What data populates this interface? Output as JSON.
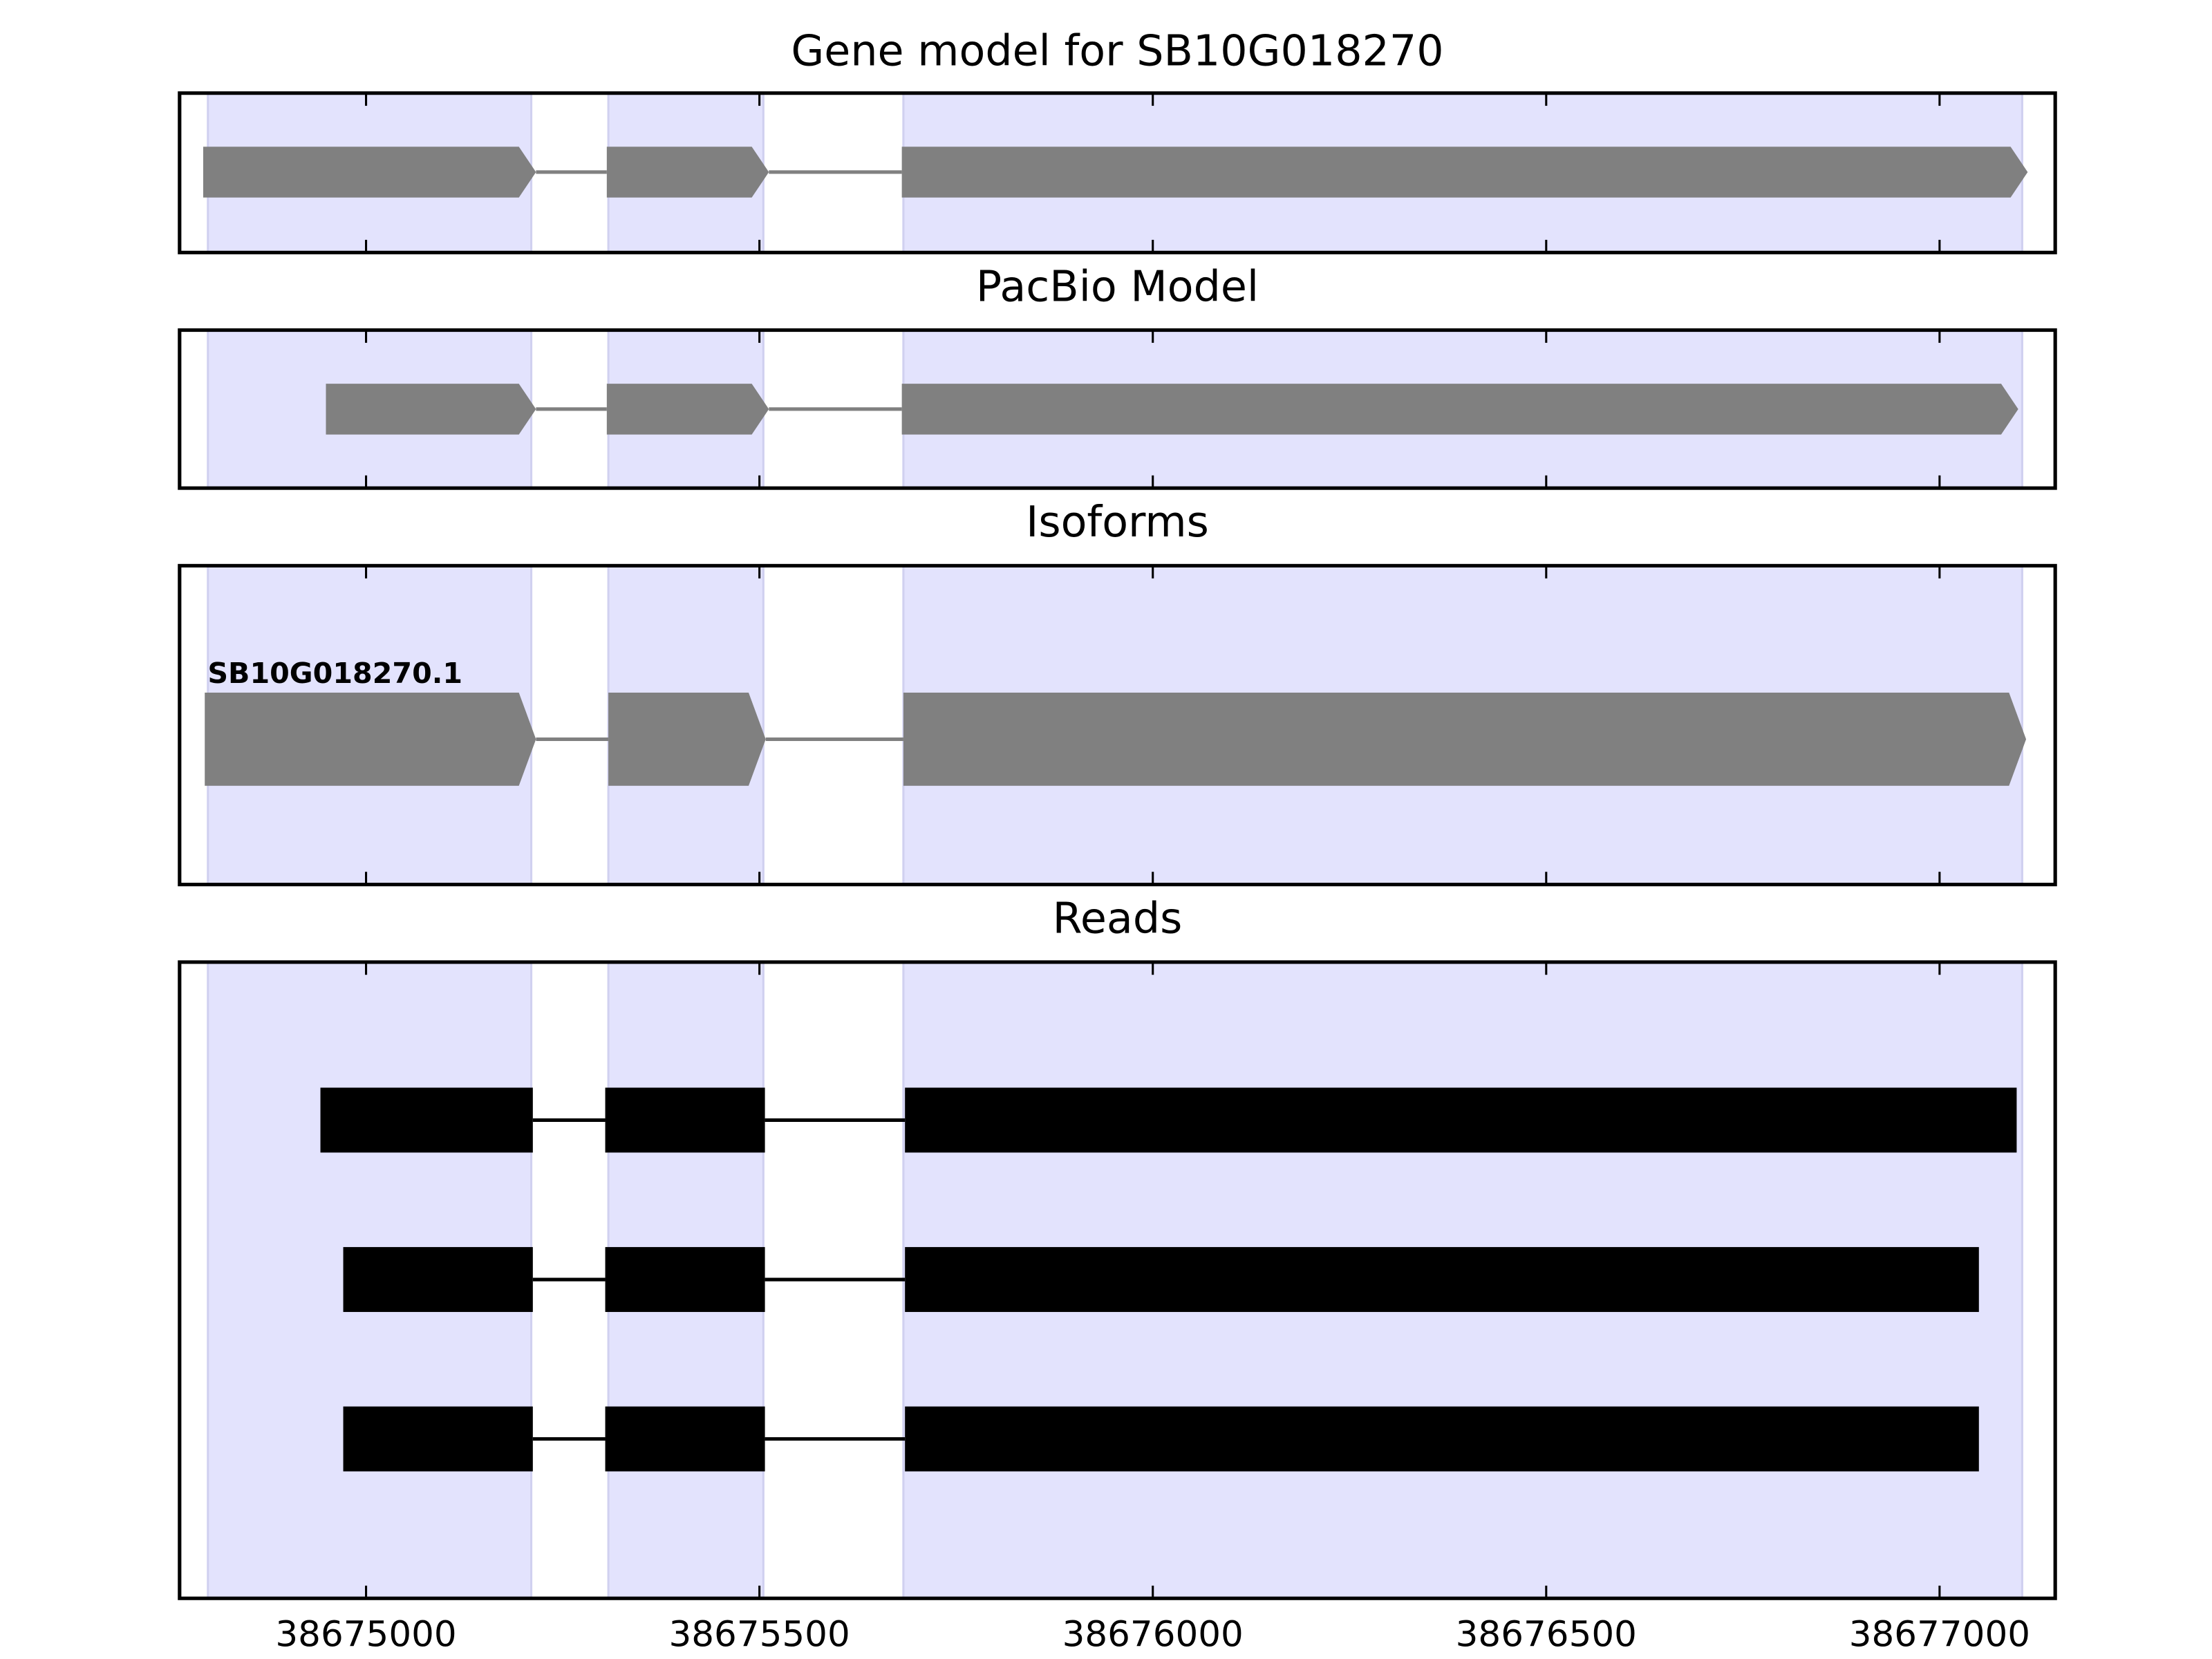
{
  "chart_data": [
    {
      "type": "gene_track",
      "title": "Gene model for SB10G018270",
      "xlim": [
        38674763,
        38677147
      ],
      "xticks": [
        38675000,
        38675500,
        38676000,
        38676500,
        38677000
      ],
      "show_tick_labels": false,
      "highlight": [
        [
          38674799,
          38675210
        ],
        [
          38675308,
          38675505
        ],
        [
          38675683,
          38677105
        ]
      ],
      "shape": "arrow",
      "color": "#808080",
      "features": [
        {
          "exons": [
            [
              38674793,
              38675216
            ],
            [
              38675306,
              38675512
            ],
            [
              38675681,
              38677112
            ]
          ]
        }
      ]
    },
    {
      "type": "gene_track",
      "title": "PacBio Model",
      "xlim": [
        38674763,
        38677147
      ],
      "xticks": [
        38675000,
        38675500,
        38676000,
        38676500,
        38677000
      ],
      "show_tick_labels": false,
      "highlight": [
        [
          38674799,
          38675210
        ],
        [
          38675308,
          38675505
        ],
        [
          38675683,
          38677105
        ]
      ],
      "shape": "arrow",
      "color": "#808080",
      "features": [
        {
          "exons": [
            [
              38674949,
              38675216
            ],
            [
              38675306,
              38675512
            ],
            [
              38675681,
              38677100
            ]
          ]
        }
      ]
    },
    {
      "type": "gene_track",
      "title": "Isoforms",
      "xlim": [
        38674763,
        38677147
      ],
      "xticks": [
        38675000,
        38675500,
        38676000,
        38676500,
        38677000
      ],
      "show_tick_labels": false,
      "highlight": [
        [
          38674799,
          38675210
        ],
        [
          38675308,
          38675505
        ],
        [
          38675683,
          38677105
        ]
      ],
      "shape": "arrow",
      "color": "#808080",
      "features": [
        {
          "label": "SB10G018270.1",
          "exons": [
            [
              38674795,
              38675216
            ],
            [
              38675308,
              38675508
            ],
            [
              38675683,
              38677110
            ]
          ]
        }
      ]
    },
    {
      "type": "gene_track",
      "title": "Reads",
      "xlim": [
        38674763,
        38677147
      ],
      "xticks": [
        38675000,
        38675500,
        38676000,
        38676500,
        38677000
      ],
      "show_tick_labels": true,
      "highlight": [
        [
          38674799,
          38675210
        ],
        [
          38675308,
          38675505
        ],
        [
          38675683,
          38677105
        ]
      ],
      "shape": "block",
      "color": "#000000",
      "features": [
        {
          "exons": [
            [
              38674942,
              38675212
            ],
            [
              38675304,
              38675507
            ],
            [
              38675685,
              38677098
            ]
          ]
        },
        {
          "exons": [
            [
              38674971,
              38675212
            ],
            [
              38675304,
              38675507
            ],
            [
              38675685,
              38677050
            ]
          ]
        },
        {
          "exons": [
            [
              38674971,
              38675212
            ],
            [
              38675304,
              38675507
            ],
            [
              38675685,
              38677050
            ]
          ]
        }
      ]
    }
  ]
}
